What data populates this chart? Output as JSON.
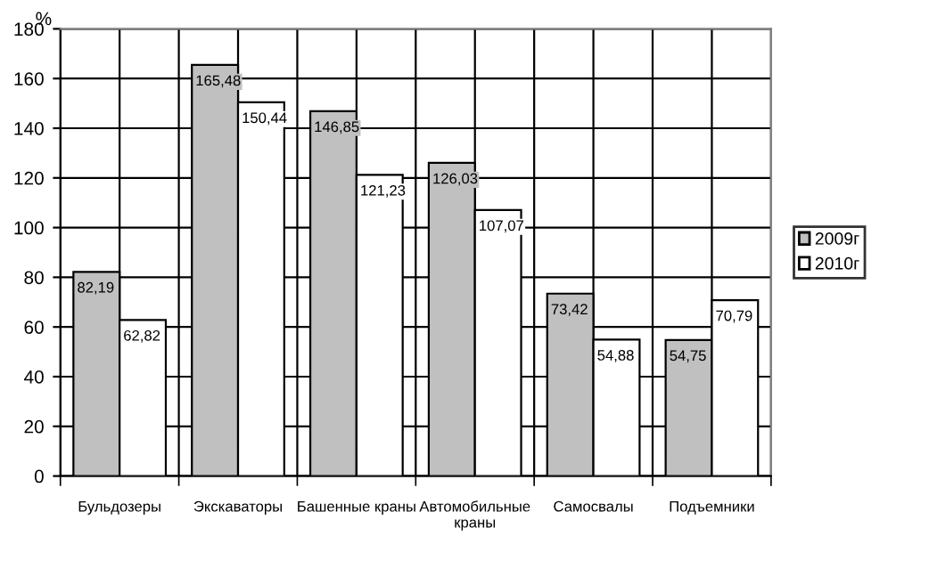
{
  "chart_data": {
    "type": "bar",
    "ylabel": "%",
    "categories": [
      "Бульдозеры",
      "Экскаваторы",
      "Башенные краны",
      "Автомобильные\nкраны",
      "Самосвалы",
      "Подъемники"
    ],
    "series": [
      {
        "name": "2009г",
        "color": "#c0c0c0",
        "values": [
          82.19,
          165.48,
          146.85,
          126.03,
          73.42,
          54.75
        ],
        "value_labels": [
          "82,19",
          "165,48",
          "146,85",
          "126,03",
          "73,42",
          "54,75"
        ]
      },
      {
        "name": "2010г",
        "color": "#ffffff",
        "values": [
          62.82,
          150.44,
          121.23,
          107.07,
          54.88,
          70.79
        ],
        "value_labels": [
          "62,82",
          "150,44",
          "121,23",
          "107,07",
          "54,88",
          "70,79"
        ]
      }
    ],
    "ylim": [
      0,
      180
    ],
    "yticks": [
      0,
      20,
      40,
      60,
      80,
      100,
      120,
      140,
      160,
      180
    ],
    "grid": true,
    "legend": "right"
  }
}
